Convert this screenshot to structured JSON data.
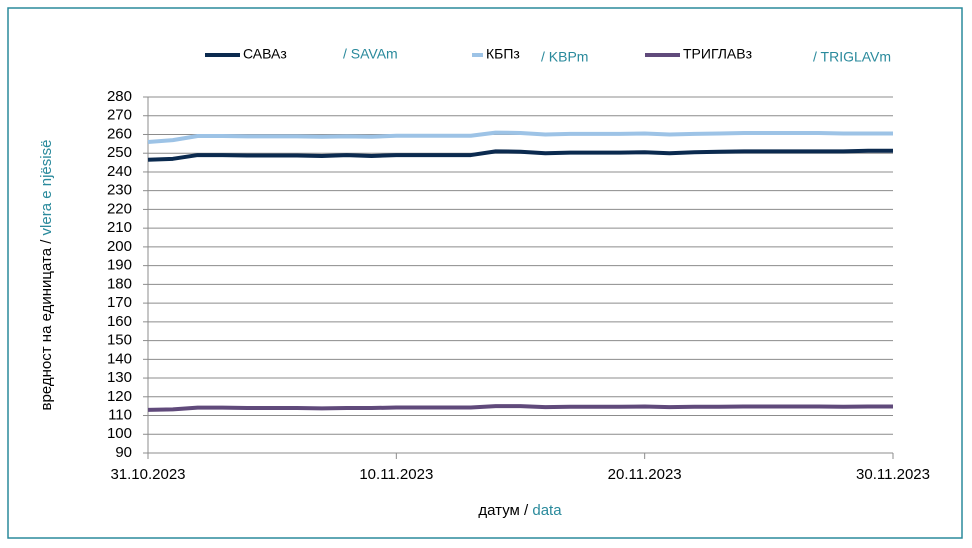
{
  "chart_data": {
    "type": "line",
    "xlabel": {
      "mk": "датум /",
      "sq": "data"
    },
    "ylabel": {
      "mk": "вредност на единицата /",
      "sq": "vlera e njësisë"
    },
    "x": [
      "31.10.2023",
      "01.11.2023",
      "02.11.2023",
      "03.11.2023",
      "04.11.2023",
      "05.11.2023",
      "06.11.2023",
      "07.11.2023",
      "08.11.2023",
      "09.11.2023",
      "10.11.2023",
      "11.11.2023",
      "12.11.2023",
      "13.11.2023",
      "14.11.2023",
      "15.11.2023",
      "16.11.2023",
      "17.11.2023",
      "18.11.2023",
      "19.11.2023",
      "20.11.2023",
      "21.11.2023",
      "22.11.2023",
      "23.11.2023",
      "24.11.2023",
      "25.11.2023",
      "26.11.2023",
      "27.11.2023",
      "28.11.2023",
      "29.11.2023",
      "30.11.2023"
    ],
    "series": [
      {
        "name": "САВАз",
        "name_sq": "/ SAVAm",
        "color": "#0b2a4f",
        "values": [
          246.5,
          247,
          249,
          249,
          248.8,
          248.8,
          248.8,
          248.5,
          249,
          248.5,
          249,
          249,
          249,
          249,
          251,
          250.8,
          250,
          250.3,
          250.3,
          250.3,
          250.5,
          250,
          250.5,
          250.8,
          251,
          251,
          251,
          251,
          251,
          251.3,
          251.3
        ]
      },
      {
        "name": "КБПз",
        "name_sq": "/ KBPm",
        "color": "#9dc3e6",
        "values": [
          256,
          257,
          259.2,
          259.2,
          259,
          259,
          259,
          258.8,
          259,
          258.8,
          259.3,
          259.3,
          259.3,
          259.3,
          261,
          260.8,
          260,
          260.3,
          260.3,
          260.3,
          260.5,
          260,
          260.3,
          260.5,
          260.8,
          260.8,
          260.8,
          260.8,
          260.5,
          260.5,
          260.5
        ]
      },
      {
        "name": "ТРИГЛАВз",
        "name_sq": "/ TRIGLAVm",
        "color": "#604a7b",
        "values": [
          113,
          113.3,
          114.2,
          114.2,
          114,
          114,
          114,
          113.8,
          114,
          114,
          114.3,
          114.3,
          114.3,
          114.3,
          115,
          115,
          114.5,
          114.7,
          114.7,
          114.7,
          114.8,
          114.5,
          114.7,
          114.7,
          114.8,
          114.8,
          114.8,
          114.8,
          114.7,
          114.8,
          114.8
        ]
      }
    ],
    "xlim": [
      "31.10.2023",
      "30.11.2023"
    ],
    "xticks": [
      "31.10.2023",
      "10.11.2023",
      "20.11.2023",
      "30.11.2023"
    ],
    "ylim": [
      90,
      280
    ],
    "yticks": [
      90,
      100,
      110,
      120,
      130,
      140,
      150,
      160,
      170,
      180,
      190,
      200,
      210,
      220,
      230,
      240,
      250,
      260,
      270,
      280
    ],
    "grid": true
  }
}
